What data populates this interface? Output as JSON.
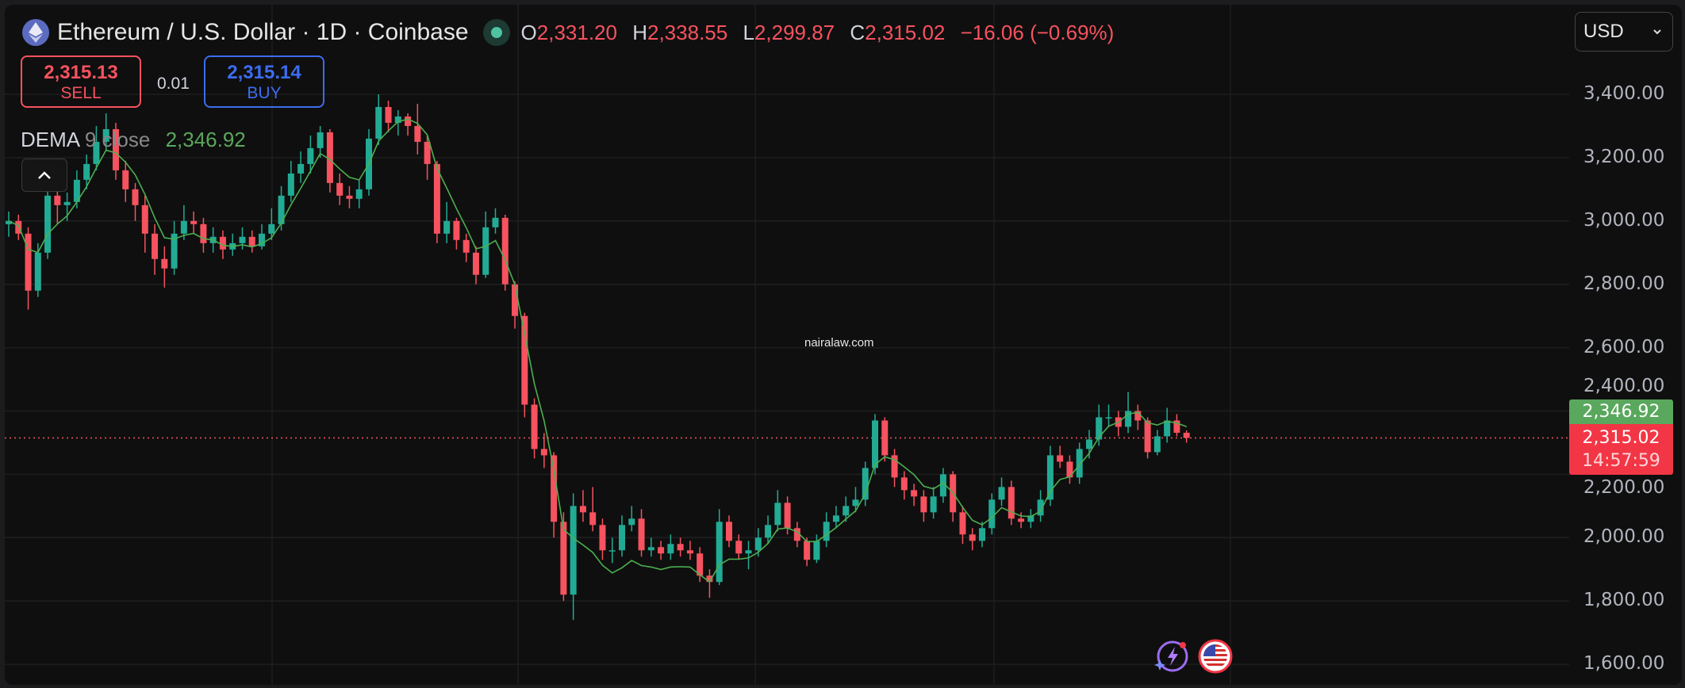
{
  "header": {
    "title": "Ethereum / U.S. Dollar · 1D · Coinbase",
    "icon": "ethereum-icon",
    "status": "market-open-dot",
    "ohlc": {
      "o_label": "O",
      "o": "2,331.20",
      "h_label": "H",
      "h": "2,338.55",
      "l_label": "L",
      "l": "2,299.87",
      "c_label": "C",
      "c": "2,315.02",
      "change": "−16.06 (−0.69%)"
    }
  },
  "trade": {
    "sell_price": "2,315.13",
    "sell_label": "SELL",
    "spread": "0.01",
    "buy_price": "2,315.14",
    "buy_label": "BUY"
  },
  "indicator": {
    "name": "DEMA",
    "length": "9",
    "source": "close",
    "value": "2,346.92"
  },
  "currency_select": {
    "value": "USD"
  },
  "watermark": "nairalaw.com",
  "price_tags": {
    "dema": "2,346.92",
    "last": "2,315.02",
    "countdown": "14:57:59"
  },
  "colors": {
    "up": "#22ab94",
    "down": "#f7525f",
    "dema": "#4caf50",
    "sell": "#f7525f",
    "buy": "#3d6cf0",
    "background": "#0f0f0f"
  },
  "bottom_icons": [
    "lightning-sparkle-icon",
    "us-flag-icon"
  ],
  "chart_data": {
    "type": "candlestick",
    "title": "Ethereum / U.S. Dollar · 1D · Coinbase",
    "ylim": [
      1600,
      3450
    ],
    "y_ticks": [
      "3,400.00",
      "3,200.00",
      "3,000.00",
      "2,800.00",
      "2,600.00",
      "2,400.00",
      "2,200.00",
      "2,000.00",
      "1,800.00",
      "1,600.00"
    ],
    "y_tick_values": [
      3400,
      3200,
      3000,
      2800,
      2600,
      2400,
      2200,
      2000,
      1800,
      1600
    ],
    "grid": true,
    "last_price": 2315.02,
    "dema_period": 9,
    "candles": [
      [
        2990,
        3030,
        2950,
        3000
      ],
      [
        3000,
        3020,
        2940,
        2960
      ],
      [
        2960,
        2980,
        2720,
        2780
      ],
      [
        2780,
        2930,
        2760,
        2900
      ],
      [
        2900,
        3110,
        2880,
        3080
      ],
      [
        3080,
        3100,
        2990,
        3050
      ],
      [
        3050,
        3090,
        3000,
        3060
      ],
      [
        3060,
        3160,
        3040,
        3130
      ],
      [
        3130,
        3210,
        3100,
        3180
      ],
      [
        3180,
        3300,
        3160,
        3250
      ],
      [
        3250,
        3340,
        3220,
        3290
      ],
      [
        3290,
        3310,
        3130,
        3160
      ],
      [
        3160,
        3190,
        3060,
        3100
      ],
      [
        3100,
        3120,
        3000,
        3050
      ],
      [
        3050,
        3080,
        2900,
        2960
      ],
      [
        2960,
        2990,
        2830,
        2880
      ],
      [
        2880,
        2920,
        2790,
        2850
      ],
      [
        2850,
        3000,
        2830,
        2960
      ],
      [
        2960,
        3050,
        2940,
        3000
      ],
      [
        3000,
        3030,
        2960,
        2990
      ],
      [
        2990,
        3010,
        2900,
        2930
      ],
      [
        2930,
        2980,
        2900,
        2950
      ],
      [
        2950,
        2970,
        2880,
        2910
      ],
      [
        2910,
        2960,
        2890,
        2930
      ],
      [
        2930,
        2980,
        2910,
        2950
      ],
      [
        2950,
        2970,
        2900,
        2920
      ],
      [
        2920,
        2990,
        2910,
        2960
      ],
      [
        2960,
        3040,
        2940,
        2990
      ],
      [
        2990,
        3110,
        2970,
        3080
      ],
      [
        3080,
        3190,
        3060,
        3150
      ],
      [
        3150,
        3220,
        3120,
        3180
      ],
      [
        3180,
        3270,
        3150,
        3230
      ],
      [
        3230,
        3300,
        3200,
        3280
      ],
      [
        3280,
        3290,
        3090,
        3120
      ],
      [
        3120,
        3150,
        3050,
        3080
      ],
      [
        3080,
        3110,
        3040,
        3070
      ],
      [
        3070,
        3130,
        3040,
        3100
      ],
      [
        3100,
        3290,
        3080,
        3260
      ],
      [
        3260,
        3400,
        3240,
        3360
      ],
      [
        3360,
        3380,
        3280,
        3310
      ],
      [
        3310,
        3350,
        3270,
        3330
      ],
      [
        3330,
        3340,
        3270,
        3300
      ],
      [
        3300,
        3370,
        3210,
        3250
      ],
      [
        3250,
        3270,
        3130,
        3180
      ],
      [
        3180,
        3190,
        2930,
        2960
      ],
      [
        2960,
        3060,
        2930,
        3000
      ],
      [
        3000,
        3010,
        2910,
        2940
      ],
      [
        2940,
        2960,
        2870,
        2900
      ],
      [
        2900,
        2920,
        2800,
        2830
      ],
      [
        2830,
        3030,
        2820,
        2980
      ],
      [
        2980,
        3040,
        2960,
        3010
      ],
      [
        3010,
        3020,
        2780,
        2800
      ],
      [
        2800,
        2810,
        2660,
        2700
      ],
      [
        2700,
        2710,
        2380,
        2420
      ],
      [
        2420,
        2440,
        2250,
        2280
      ],
      [
        2280,
        2330,
        2220,
        2260
      ],
      [
        2260,
        2270,
        2000,
        2050
      ],
      [
        2050,
        2080,
        1800,
        1820
      ],
      [
        1820,
        2140,
        1740,
        2100
      ],
      [
        2100,
        2150,
        2050,
        2080
      ],
      [
        2080,
        2160,
        2020,
        2040
      ],
      [
        2040,
        2060,
        1930,
        1960
      ],
      [
        1960,
        2000,
        1920,
        1960
      ],
      [
        1960,
        2070,
        1940,
        2040
      ],
      [
        2040,
        2100,
        2020,
        2060
      ],
      [
        2060,
        2090,
        1940,
        1960
      ],
      [
        1960,
        2000,
        1940,
        1970
      ],
      [
        1970,
        1990,
        1930,
        1950
      ],
      [
        1950,
        2010,
        1930,
        1980
      ],
      [
        1980,
        2000,
        1940,
        1960
      ],
      [
        1960,
        1990,
        1930,
        1950
      ],
      [
        1950,
        1970,
        1860,
        1880
      ],
      [
        1880,
        1900,
        1810,
        1860
      ],
      [
        1860,
        2090,
        1850,
        2050
      ],
      [
        2050,
        2070,
        1970,
        1990
      ],
      [
        1990,
        2010,
        1930,
        1950
      ],
      [
        1950,
        1990,
        1900,
        1960
      ],
      [
        1960,
        2030,
        1940,
        2000
      ],
      [
        2000,
        2070,
        1980,
        2040
      ],
      [
        2040,
        2150,
        2020,
        2110
      ],
      [
        2110,
        2130,
        2010,
        2030
      ],
      [
        2030,
        2050,
        1970,
        1990
      ],
      [
        1990,
        2000,
        1910,
        1930
      ],
      [
        1930,
        2010,
        1920,
        1990
      ],
      [
        1990,
        2080,
        1970,
        2050
      ],
      [
        2050,
        2100,
        2030,
        2070
      ],
      [
        2070,
        2130,
        2050,
        2100
      ],
      [
        2100,
        2160,
        2080,
        2120
      ],
      [
        2120,
        2240,
        2100,
        2220
      ],
      [
        2220,
        2390,
        2200,
        2370
      ],
      [
        2370,
        2380,
        2240,
        2260
      ],
      [
        2260,
        2280,
        2160,
        2190
      ],
      [
        2190,
        2210,
        2120,
        2150
      ],
      [
        2150,
        2170,
        2100,
        2130
      ],
      [
        2130,
        2150,
        2050,
        2080
      ],
      [
        2080,
        2160,
        2060,
        2130
      ],
      [
        2130,
        2220,
        2110,
        2200
      ],
      [
        2200,
        2210,
        2050,
        2080
      ],
      [
        2080,
        2100,
        1980,
        2010
      ],
      [
        2010,
        2030,
        1960,
        1990
      ],
      [
        1990,
        2050,
        1970,
        2030
      ],
      [
        2030,
        2140,
        2010,
        2120
      ],
      [
        2120,
        2190,
        2100,
        2160
      ],
      [
        2160,
        2180,
        2040,
        2060
      ],
      [
        2060,
        2080,
        2030,
        2050
      ],
      [
        2050,
        2090,
        2030,
        2070
      ],
      [
        2070,
        2150,
        2050,
        2120
      ],
      [
        2120,
        2290,
        2100,
        2260
      ],
      [
        2260,
        2290,
        2220,
        2240
      ],
      [
        2240,
        2260,
        2170,
        2190
      ],
      [
        2190,
        2300,
        2170,
        2280
      ],
      [
        2280,
        2340,
        2250,
        2310
      ],
      [
        2310,
        2420,
        2290,
        2380
      ],
      [
        2380,
        2420,
        2350,
        2380
      ],
      [
        2380,
        2400,
        2320,
        2350
      ],
      [
        2350,
        2460,
        2330,
        2400
      ],
      [
        2400,
        2420,
        2340,
        2370
      ],
      [
        2370,
        2380,
        2250,
        2270
      ],
      [
        2270,
        2340,
        2260,
        2320
      ],
      [
        2320,
        2410,
        2300,
        2370
      ],
      [
        2370,
        2390,
        2320,
        2331.2
      ],
      [
        2331.2,
        2338.55,
        2299.87,
        2315.02
      ]
    ]
  }
}
